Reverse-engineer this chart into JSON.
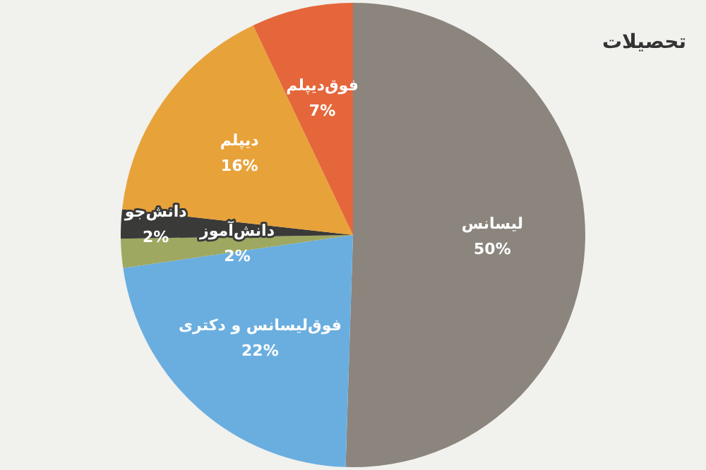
{
  "chart_data": {
    "type": "pie",
    "title": "تحصیلات",
    "categories": [
      "لیسانس",
      "فوق‌لیسانس و دکتری",
      "دانش‌آموز",
      "دانش‌جو",
      "دیپلم",
      "فوق‌دیپلم"
    ],
    "values": [
      50,
      22,
      2,
      2,
      16,
      7
    ],
    "colors": [
      "#8b857e",
      "#6aaee0",
      "#9fa860",
      "#3a3a38",
      "#e8a23a",
      "#e5663a"
    ],
    "value_labels": [
      "50%",
      "22%",
      "2%",
      "2%",
      "16%",
      "7%"
    ],
    "legend": false
  }
}
